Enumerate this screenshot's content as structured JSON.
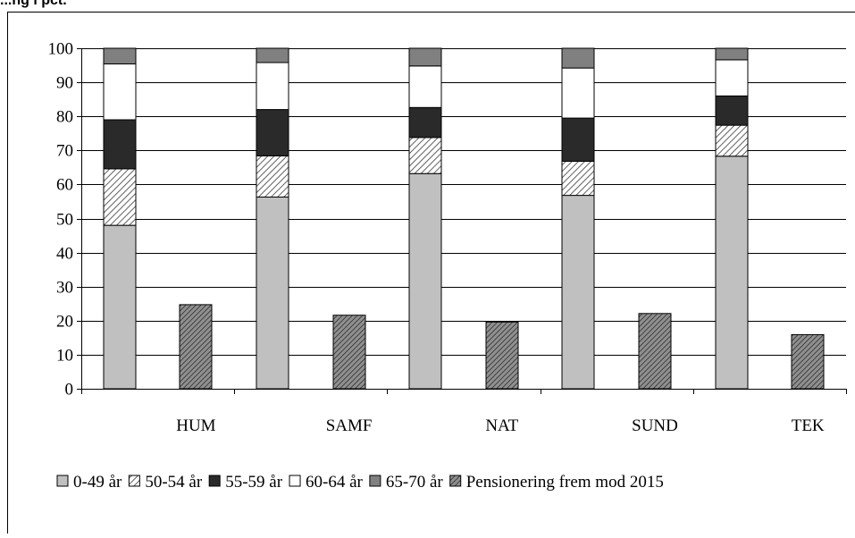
{
  "title_fragment": "...ng i pct.",
  "chart_data": {
    "type": "bar",
    "stacked": true,
    "categories": [
      "HUM",
      "SAMF",
      "NAT",
      "SUND",
      "TEK"
    ],
    "ylim": [
      0,
      100
    ],
    "yticks": [
      0,
      10,
      20,
      30,
      40,
      50,
      60,
      70,
      80,
      90,
      100
    ],
    "grid": true,
    "legend_position": "bottom",
    "stack_series": [
      {
        "name": "0-49 år",
        "color": "#c0c0c0",
        "pattern": "solid",
        "values": [
          48,
          56.3,
          63.2,
          56.8,
          68.3
        ]
      },
      {
        "name": "50-54 år",
        "color": "#ffffff",
        "pattern": "hatch-light",
        "values": [
          16.6,
          12.1,
          10.6,
          10.0,
          9.1
        ]
      },
      {
        "name": "55-59 år",
        "color": "#2a2a2a",
        "pattern": "solid",
        "values": [
          14.4,
          13.6,
          8.8,
          12.7,
          8.6
        ]
      },
      {
        "name": "60-64 år",
        "color": "#ffffff",
        "pattern": "solid",
        "values": [
          16.4,
          13.8,
          12.2,
          14.7,
          10.6
        ]
      },
      {
        "name": "65-70 år",
        "color": "#808080",
        "pattern": "solid",
        "values": [
          4.6,
          4.2,
          5.2,
          5.8,
          3.4
        ]
      }
    ],
    "side_series": {
      "name": "Pensionering frem mod 2015",
      "color": "#7a7a7a",
      "pattern": "hatch-dark",
      "values": [
        24.7,
        21.6,
        19.6,
        22.1,
        15.9
      ]
    }
  }
}
